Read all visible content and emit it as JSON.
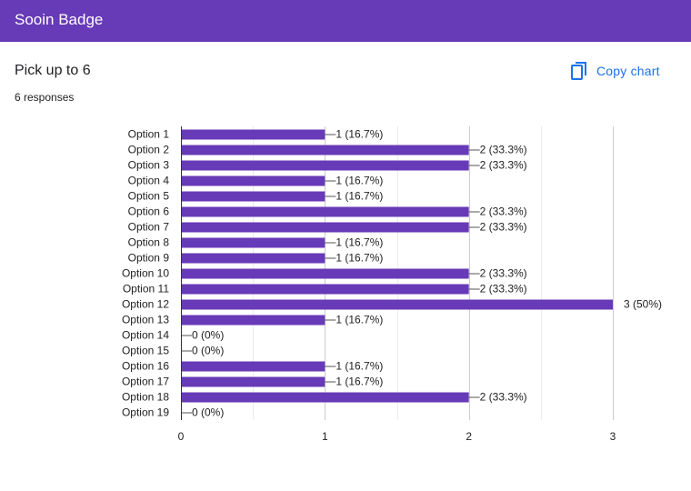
{
  "header": {
    "title": "Sooin Badge"
  },
  "question": {
    "title": "Pick up to 6",
    "responses": "6 responses"
  },
  "toolbar": {
    "copy_chart_label": "Copy chart",
    "copy_icon": "copy-icon"
  },
  "colors": {
    "header": "#673ab7",
    "bar": "#673ab7",
    "accent": "#1a73e8"
  },
  "chart_data": {
    "type": "bar",
    "orientation": "horizontal",
    "categories": [
      "Option 1",
      "Option 2",
      "Option 3",
      "Option 4",
      "Option 5",
      "Option 6",
      "Option 7",
      "Option 8",
      "Option 9",
      "Option 10",
      "Option 11",
      "Option 12",
      "Option 13",
      "Option 14",
      "Option 15",
      "Option 16",
      "Option 17",
      "Option 18",
      "Option 19"
    ],
    "values": [
      1,
      2,
      2,
      1,
      1,
      2,
      2,
      1,
      1,
      2,
      2,
      3,
      1,
      0,
      0,
      1,
      1,
      2,
      0
    ],
    "data_labels": [
      "1 (16.7%)",
      "2 (33.3%)",
      "2 (33.3%)",
      "1 (16.7%)",
      "1 (16.7%)",
      "2 (33.3%)",
      "2 (33.3%)",
      "1 (16.7%)",
      "1 (16.7%)",
      "2 (33.3%)",
      "2 (33.3%)",
      "3 (50%)",
      "1 (16.7%)",
      "0 (0%)",
      "0 (0%)",
      "1 (16.7%)",
      "1 (16.7%)",
      "2 (33.3%)",
      "0 (0%)"
    ],
    "xlim": [
      0,
      3
    ],
    "xticks": [
      "0",
      "1",
      "2",
      "3"
    ],
    "grid": true,
    "legend": "none"
  }
}
